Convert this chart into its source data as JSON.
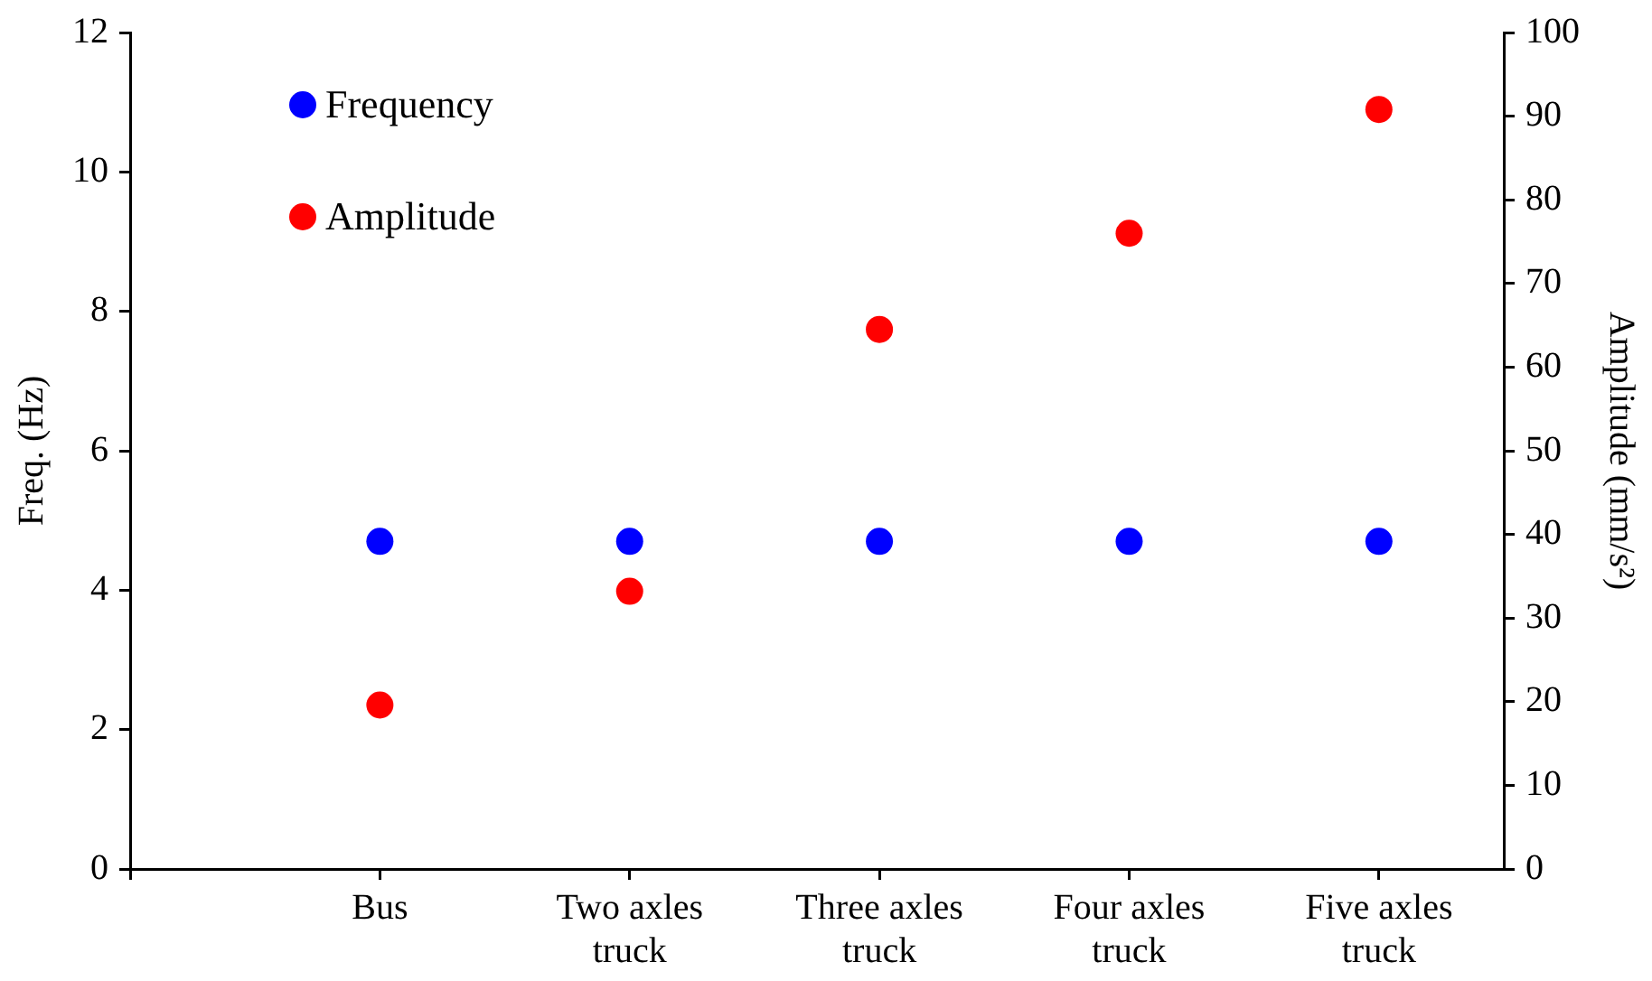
{
  "chart_data": {
    "type": "scatter",
    "ylabel": "Freq. (Hz)",
    "y2label": "Amplitude (mm/s²)",
    "categories": [
      null,
      "Bus",
      "Two axles truck",
      "Three axles truck",
      "Four axles truck",
      "Five axles truck"
    ],
    "series": [
      {
        "name": "Frequency",
        "color": "#0000ff",
        "values": [
          null,
          4.7,
          4.7,
          4.7,
          4.7,
          4.7
        ]
      },
      {
        "name": "Amplitude",
        "color": "#ff0000",
        "axis": "y2",
        "values": [
          null,
          19.6,
          33.2,
          64.5,
          76.0,
          90.8
        ]
      }
    ],
    "ylim": [
      0,
      12
    ],
    "yticks": [
      0,
      2,
      4,
      6,
      8,
      10,
      12
    ],
    "y2lim": [
      0,
      100
    ],
    "y2ticks": [
      0,
      10,
      20,
      30,
      40,
      50,
      60,
      70,
      80,
      90,
      100
    ],
    "grid": false,
    "legend": "top left",
    "marker": "circle"
  }
}
